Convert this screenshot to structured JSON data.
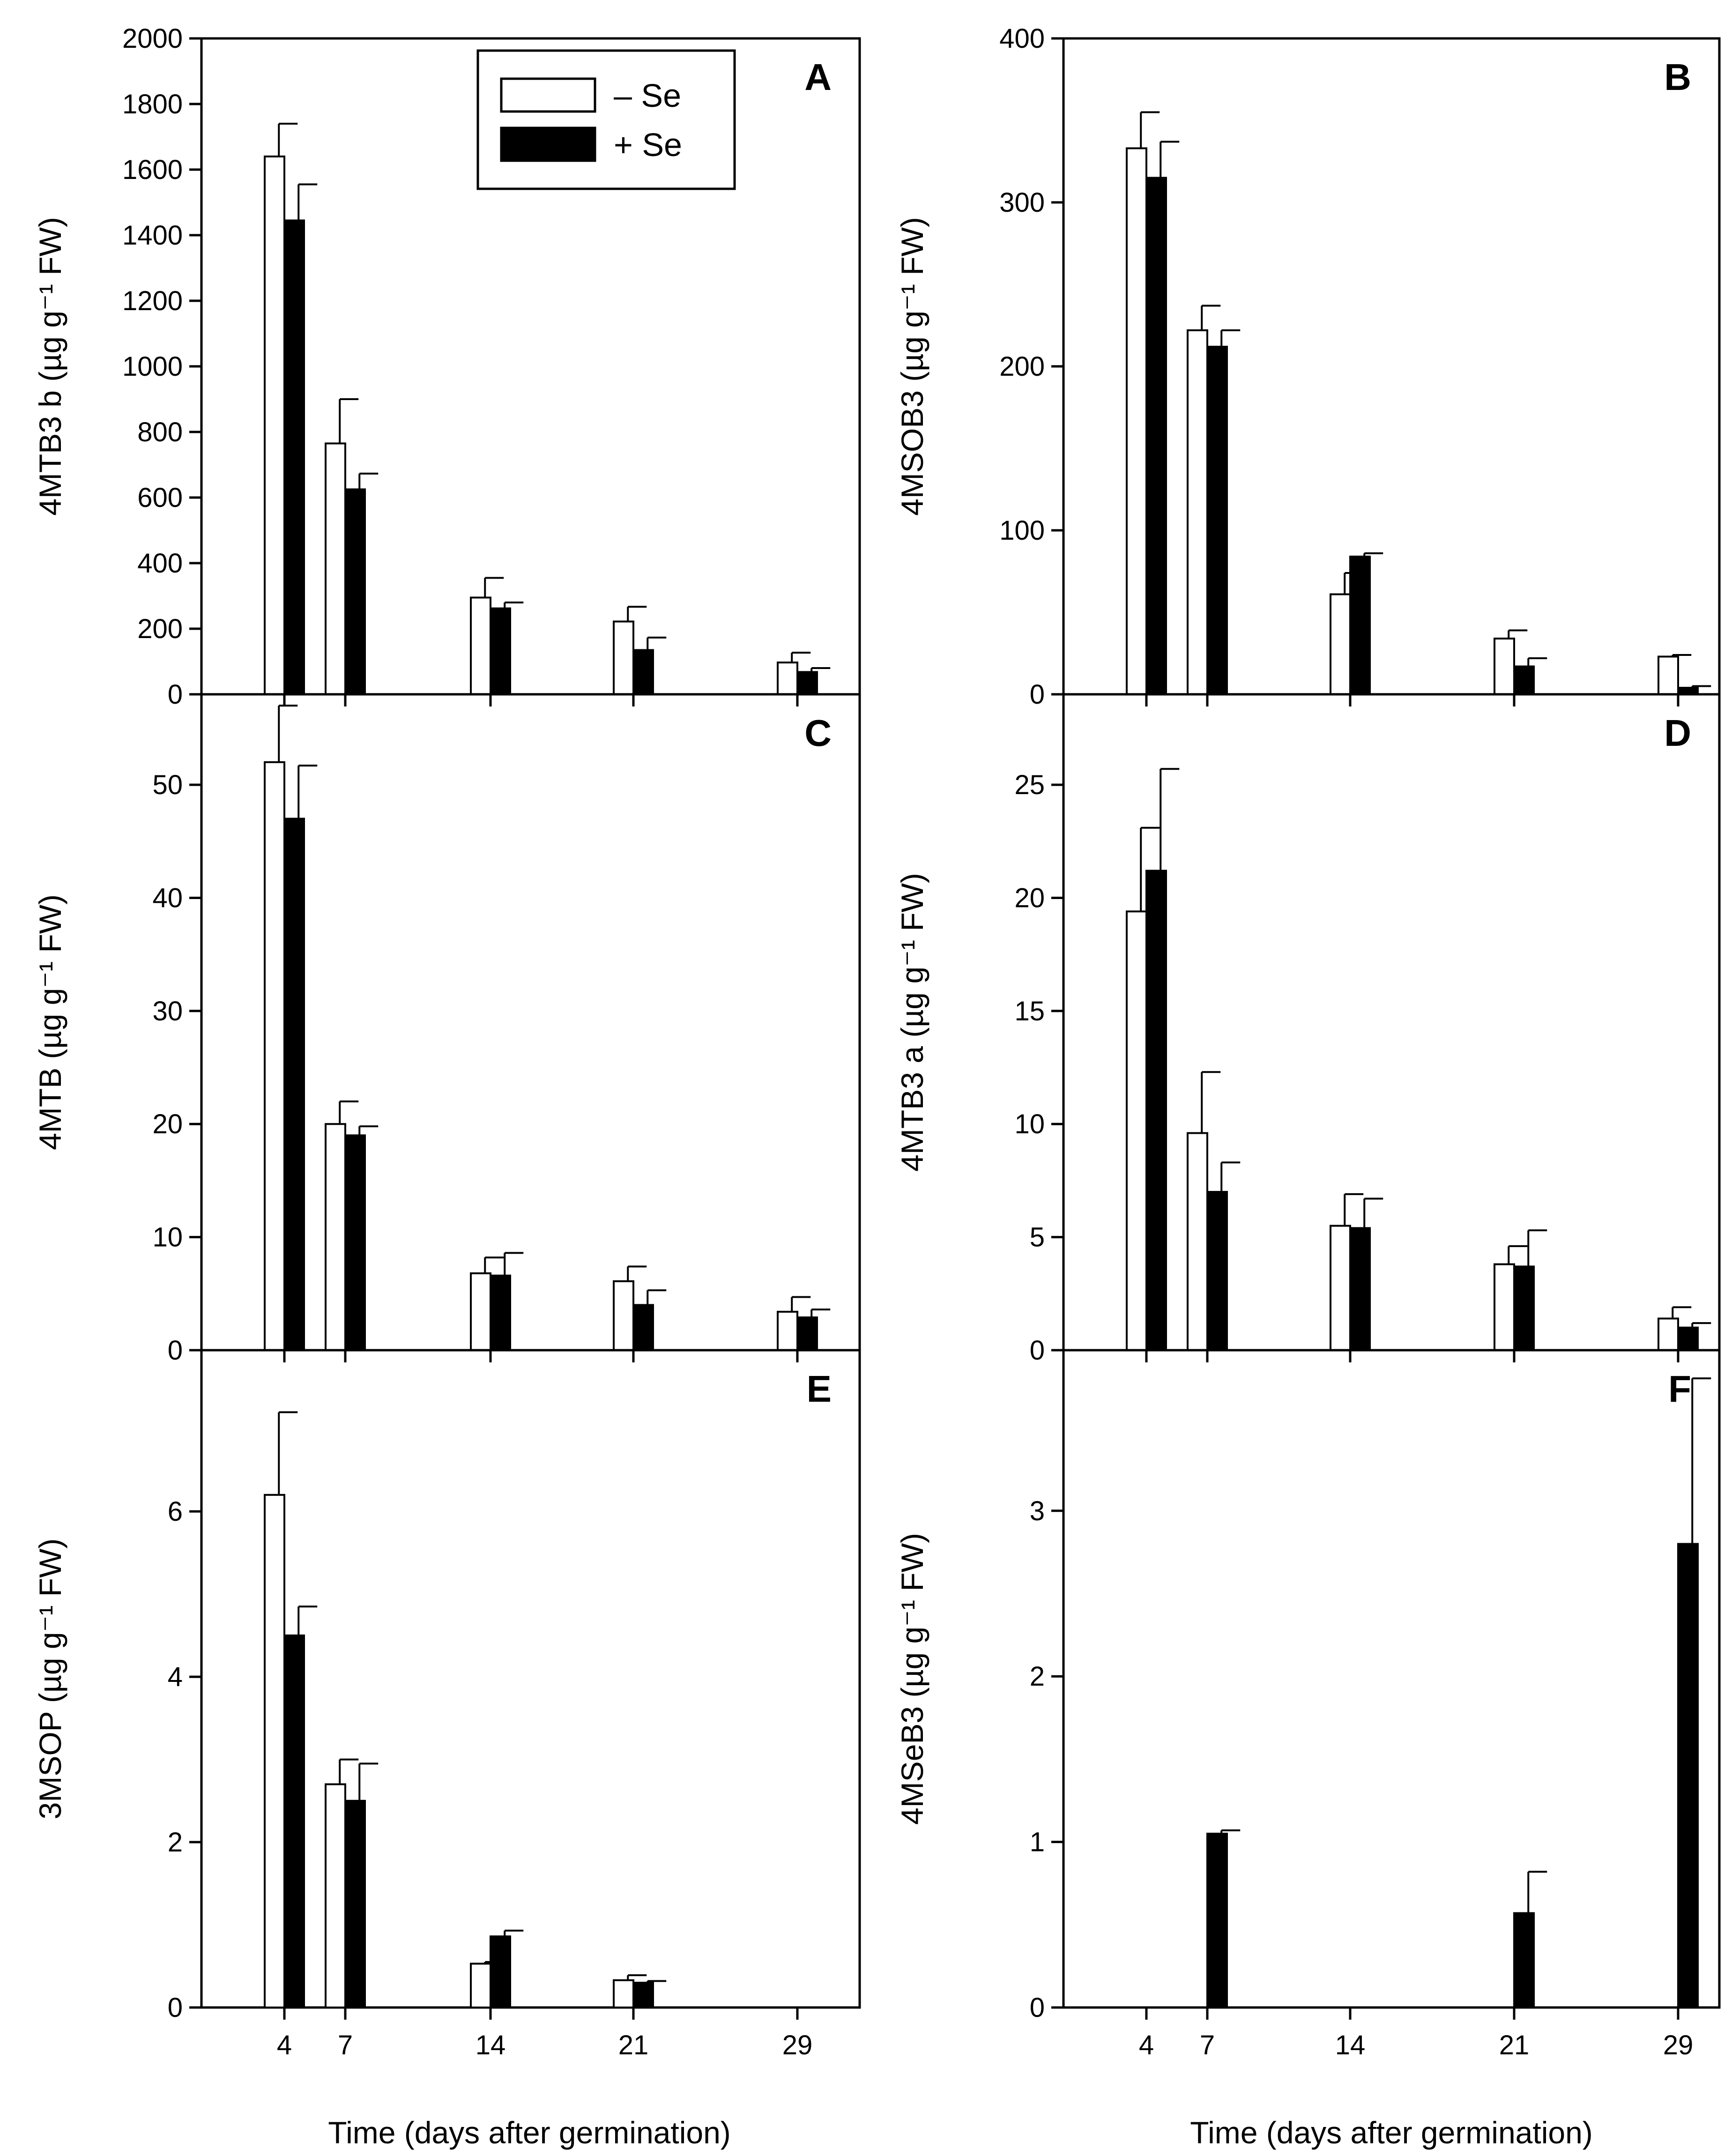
{
  "figure": {
    "legend": [
      {
        "label": "– Se",
        "fill": "#ffffff"
      },
      {
        "label": "+ Se",
        "fill": "#000000"
      }
    ],
    "shared_xlabel": "Time (days after germination)",
    "x_ticks": [
      "4",
      "7",
      "14",
      "21",
      "29"
    ]
  },
  "chart_data": [
    {
      "panel": "A",
      "type": "bar",
      "ylabel": "4MTB3 b (µg g⁻¹ FW)",
      "ylim": [
        0,
        2000
      ],
      "yticks": [
        "0",
        "200",
        "400",
        "600",
        "800",
        "1000",
        "1200",
        "1400",
        "1600",
        "1800",
        "2000"
      ],
      "x": [
        4,
        7,
        14,
        21,
        29
      ],
      "series": [
        {
          "name": "– Se",
          "values": [
            1640,
            765,
            295,
            222,
            97
          ],
          "errors": [
            100,
            135,
            60,
            45,
            30
          ]
        },
        {
          "name": "+ Se",
          "values": [
            1445,
            625,
            262,
            135,
            68
          ],
          "errors": [
            110,
            48,
            18,
            38,
            12
          ]
        }
      ]
    },
    {
      "panel": "B",
      "type": "bar",
      "ylabel": "4MSOB3 (µg g⁻¹ FW)",
      "ylim": [
        0,
        400
      ],
      "yticks": [
        "0",
        "100",
        "200",
        "300",
        "400"
      ],
      "x": [
        4,
        7,
        14,
        21,
        29
      ],
      "series": [
        {
          "name": "– Se",
          "values": [
            333,
            222,
            61,
            34,
            23
          ],
          "errors": [
            22,
            15,
            13,
            5,
            1
          ]
        },
        {
          "name": "+ Se",
          "values": [
            315,
            212,
            84,
            17,
            4
          ],
          "errors": [
            22,
            10,
            2,
            5,
            1
          ]
        }
      ]
    },
    {
      "panel": "C",
      "type": "bar",
      "ylabel": "4MTB (µg g⁻¹ FW)",
      "ylim": [
        0,
        58
      ],
      "yticks": [
        "0",
        "10",
        "20",
        "30",
        "40",
        "50"
      ],
      "x": [
        4,
        7,
        14,
        21,
        29
      ],
      "series": [
        {
          "name": "– Se",
          "values": [
            52,
            20,
            6.8,
            6.1,
            3.4
          ],
          "errors": [
            5,
            2,
            1.4,
            1.3,
            1.3
          ]
        },
        {
          "name": "+ Se",
          "values": [
            47,
            19,
            6.6,
            4,
            2.9
          ],
          "errors": [
            4.7,
            0.8,
            2,
            1.3,
            0.7
          ]
        }
      ]
    },
    {
      "panel": "D",
      "type": "bar",
      "ylabel": "4MTB3 a (µg g⁻¹ FW)",
      "ylim": [
        0,
        29
      ],
      "yticks": [
        "0",
        "5",
        "10",
        "15",
        "20",
        "25"
      ],
      "x": [
        4,
        7,
        14,
        21,
        29
      ],
      "series": [
        {
          "name": "– Se",
          "values": [
            19.4,
            9.6,
            5.5,
            3.8,
            1.4
          ],
          "errors": [
            3.7,
            2.7,
            1.4,
            0.8,
            0.5
          ]
        },
        {
          "name": "+ Se",
          "values": [
            21.2,
            7,
            5.4,
            3.7,
            1
          ],
          "errors": [
            4.5,
            1.3,
            1.3,
            1.6,
            0.2
          ]
        }
      ]
    },
    {
      "panel": "E",
      "type": "bar",
      "ylabel": "3MSOP (µg g⁻¹ FW)",
      "ylim": [
        0,
        7.95
      ],
      "yticks": [
        "0",
        "2",
        "4",
        "6"
      ],
      "x": [
        4,
        7,
        14,
        21,
        29
      ],
      "series": [
        {
          "name": "– Se",
          "values": [
            6.2,
            2.7,
            0.53,
            0.33,
            0
          ],
          "errors": [
            1.0,
            0.3,
            0.02,
            0.06,
            0
          ]
        },
        {
          "name": "+ Se",
          "values": [
            4.5,
            2.5,
            0.86,
            0.3,
            0
          ],
          "errors": [
            0.35,
            0.45,
            0.07,
            0.02,
            0
          ]
        }
      ]
    },
    {
      "panel": "F",
      "type": "bar",
      "ylabel": "4MSeB3 (µg g⁻¹ FW)",
      "ylim": [
        0,
        3.97
      ],
      "yticks": [
        "0",
        "1",
        "2",
        "3"
      ],
      "x": [
        4,
        7,
        14,
        21,
        29
      ],
      "series": [
        {
          "name": "– Se",
          "values": [
            0,
            0,
            0,
            0,
            0
          ],
          "errors": [
            0,
            0,
            0,
            0,
            0
          ]
        },
        {
          "name": "+ Se",
          "values": [
            0,
            1.05,
            0,
            0.57,
            2.8
          ],
          "errors": [
            0,
            0.02,
            0,
            0.25,
            1.0
          ]
        }
      ]
    }
  ]
}
